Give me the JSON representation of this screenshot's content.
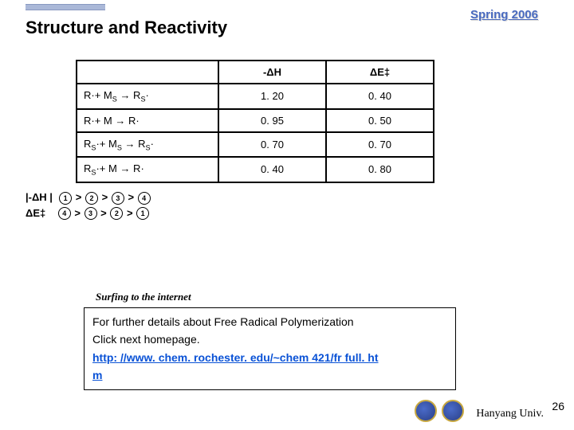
{
  "title": "Structure and Reactivity",
  "semester": "Spring 2006",
  "table": {
    "headers": {
      "col1": "-ΔH",
      "col2": "ΔE‡"
    },
    "rows": [
      {
        "label_html": "R·+ M<sub>S</sub> → R<sub>S</sub>·",
        "v1": "1. 20",
        "v2": "0. 40"
      },
      {
        "label_html": "R·+ M → R·",
        "v1": "0. 95",
        "v2": "0. 50"
      },
      {
        "label_html": "R<sub>S</sub>·+ M<sub>S</sub> → R<sub>S</sub>·",
        "v1": "0. 70",
        "v2": "0. 70"
      },
      {
        "label_html": "R<sub>S</sub>·+ M → R·",
        "v1": "0. 40",
        "v2": "0. 80"
      }
    ]
  },
  "ordering": {
    "line1_prefix": "|-ΔH |",
    "line2_prefix": "ΔE‡",
    "seq1": [
      "①",
      "②",
      "③",
      "④"
    ],
    "seq2": [
      "④",
      "③",
      "②",
      "①"
    ]
  },
  "surfing": "Surfing to the internet",
  "info": {
    "line1": "For further details about Free Radical Polymerization",
    "line2": "Click next homepage.",
    "link": "http: //www. chem. rochester. edu/~chem 421/fr full. htm"
  },
  "footer": {
    "uni": "Hanyang Univ.",
    "page": "26"
  },
  "colors": {
    "accent": "#aab8d8",
    "semester_text": "#4a6bc0",
    "link": "#0a52d6",
    "seal_outer": "#c8a840",
    "seal_inner": "#2a3f87"
  }
}
